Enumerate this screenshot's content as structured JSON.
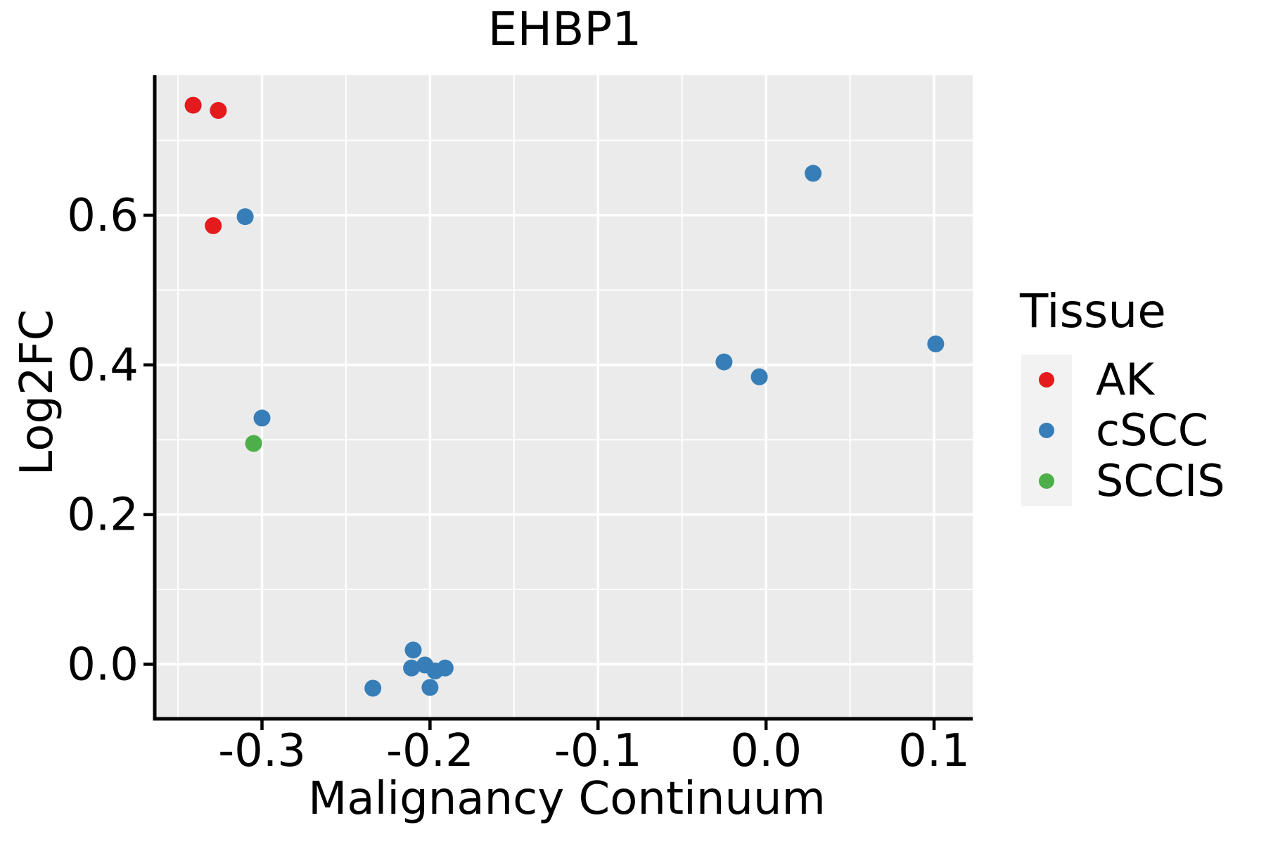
{
  "figure": {
    "title": "EHBP1",
    "x_axis_label": "Malignancy Continuum",
    "y_axis_label": "Log2FC"
  },
  "legend": {
    "title": "Tissue",
    "entries": [
      {
        "label": "AK",
        "color": "#E41A1C"
      },
      {
        "label": "cSCC",
        "color": "#377EB8"
      },
      {
        "label": "SCCIS",
        "color": "#4DAF4A"
      }
    ]
  },
  "colors": {
    "panel_background": "#EBEBEB",
    "gridline": "#FFFFFF",
    "axis_line": "#000000",
    "legend_key_background": "#F2F2F2",
    "text": "#000000"
  },
  "chart_data": {
    "type": "scatter",
    "title": "EHBP1",
    "xlabel": "Malignancy Continuum",
    "ylabel": "Log2FC",
    "xlim": [
      -0.363,
      0.123
    ],
    "ylim": [
      -0.071,
      0.787
    ],
    "x_major_ticks": [
      -0.3,
      -0.2,
      -0.1,
      0.0,
      0.1
    ],
    "x_tick_labels": [
      "-0.3",
      "-0.2",
      "-0.1",
      "0.0",
      "0.1"
    ],
    "x_minor_ticks": [
      -0.35,
      -0.25,
      -0.15,
      -0.05,
      0.05
    ],
    "y_major_ticks": [
      0.0,
      0.2,
      0.4,
      0.6
    ],
    "y_tick_labels": [
      "0.0",
      "0.2",
      "0.4",
      "0.6"
    ],
    "y_minor_ticks": [
      0.1,
      0.3,
      0.5,
      0.7
    ],
    "grid": true,
    "legend_position": "right",
    "series": [
      {
        "name": "AK",
        "color": "#E41A1C",
        "points": [
          [
            -0.341,
            0.747
          ],
          [
            -0.326,
            0.74
          ],
          [
            -0.329,
            0.586
          ]
        ]
      },
      {
        "name": "cSCC",
        "color": "#377EB8",
        "points": [
          [
            -0.31,
            0.598
          ],
          [
            -0.3,
            0.329
          ],
          [
            -0.234,
            -0.032
          ],
          [
            -0.21,
            0.019
          ],
          [
            -0.211,
            -0.005
          ],
          [
            -0.203,
            -0.001
          ],
          [
            -0.197,
            -0.009
          ],
          [
            -0.191,
            -0.005
          ],
          [
            -0.2,
            -0.031
          ],
          [
            -0.025,
            0.404
          ],
          [
            -0.004,
            0.384
          ],
          [
            0.028,
            0.656
          ],
          [
            0.101,
            0.428
          ]
        ]
      },
      {
        "name": "SCCIS",
        "color": "#4DAF4A",
        "points": [
          [
            -0.305,
            0.295
          ]
        ]
      }
    ]
  }
}
